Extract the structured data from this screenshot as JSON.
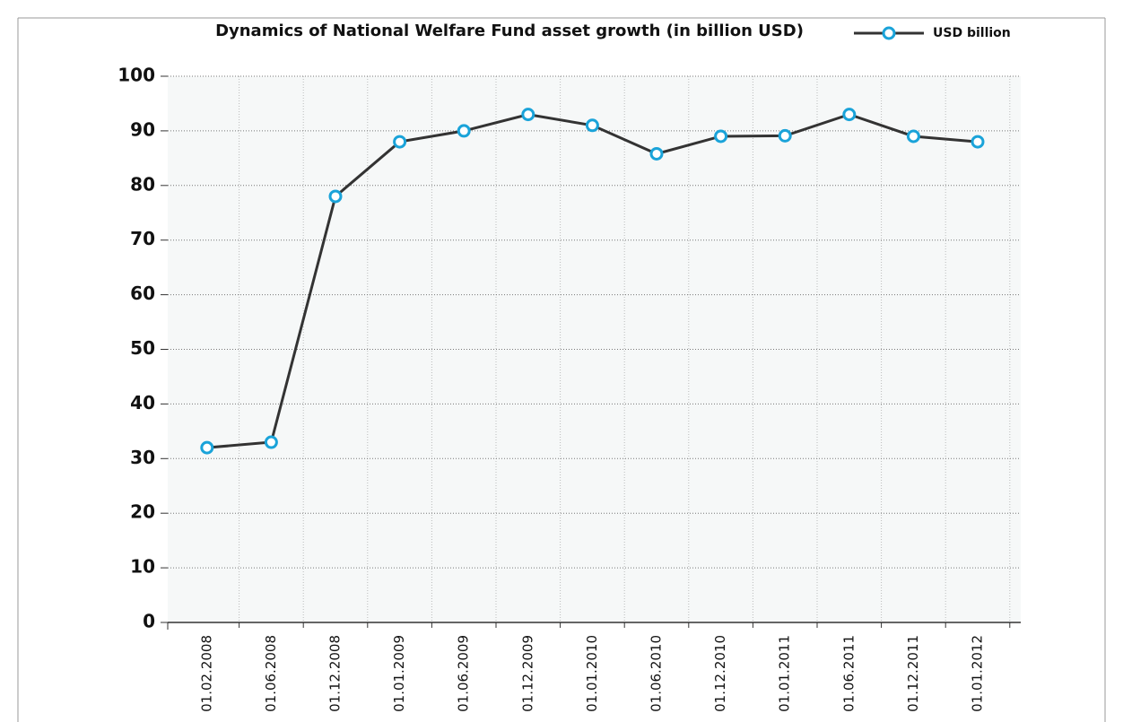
{
  "chart_data": {
    "type": "line",
    "title": "Dynamics of National Welfare Fund asset growth (in billion USD)",
    "categories": [
      "01.02.2008",
      "01.06.2008",
      "01.12.2008",
      "01.01.2009",
      "01.06.2009",
      "01.12.2009",
      "01.01.2010",
      "01.06.2010",
      "01.12.2010",
      "01.01.2011",
      "01.06.2011",
      "01.12.2011",
      "01.01.2012"
    ],
    "series": [
      {
        "name": "USD billion",
        "color": "#333333",
        "marker_color": "#1aa3d9",
        "values": [
          32,
          33,
          78,
          88,
          90,
          93,
          91,
          85.8,
          89,
          89.1,
          93,
          89,
          88
        ]
      }
    ],
    "ylim": [
      0,
      100
    ],
    "yticks": [
      0,
      10,
      20,
      30,
      40,
      50,
      60,
      70,
      80,
      90,
      100
    ],
    "grid": true,
    "legend": "top-right"
  }
}
